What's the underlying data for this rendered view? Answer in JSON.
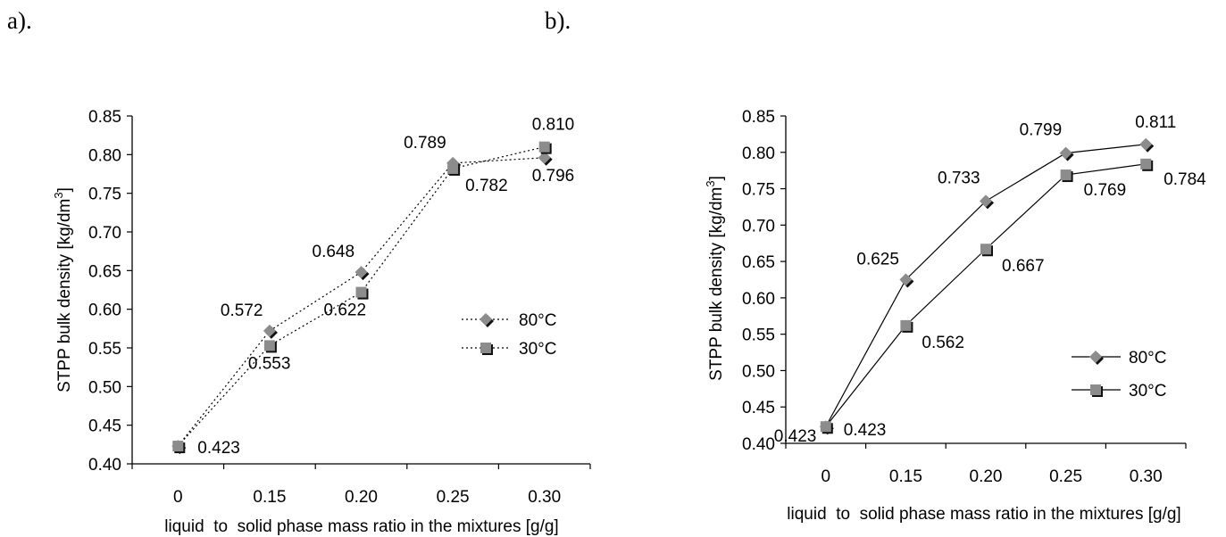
{
  "panels": {
    "a_label": "a).",
    "b_label": "b)."
  },
  "chart_data": [
    {
      "type": "line",
      "panel": "a).",
      "categories": [
        "0",
        "0.15",
        "0.20",
        "0.25",
        "0.30"
      ],
      "ylabel": "STPP bulk density [kg/dm³]",
      "xlabel": "liquid  to  solid phase mass ratio in the mixtures [g/g]",
      "ylim": [
        0.4,
        0.85
      ],
      "yticks": [
        "0.40",
        "0.45",
        "0.50",
        "0.55",
        "0.60",
        "0.65",
        "0.70",
        "0.75",
        "0.80",
        "0.85"
      ],
      "line_style": "dotted",
      "legend_position": "right",
      "series": [
        {
          "name": "80°C",
          "marker": "diamond",
          "color": "#8c8c8c",
          "values": [
            0.423,
            0.572,
            0.648,
            0.789,
            0.796
          ],
          "labels": [
            "",
            "0.572",
            "0.648",
            "0.789",
            "0.796"
          ]
        },
        {
          "name": "30°C",
          "marker": "square",
          "color": "#8c8c8c",
          "values": [
            0.423,
            0.553,
            0.622,
            0.782,
            0.81
          ],
          "labels": [
            "0.423",
            "0.553",
            "0.622",
            "0.782",
            "0.810"
          ]
        }
      ]
    },
    {
      "type": "line",
      "panel": "b).",
      "categories": [
        "0",
        "0.15",
        "0.20",
        "0.25",
        "0.30"
      ],
      "ylabel": "STPP bulk density [kg/dm³]",
      "xlabel": "liquid  to  solid phase mass ratio in the mixtures [g/g]",
      "ylim": [
        0.4,
        0.85
      ],
      "yticks": [
        "0.40",
        "0.45",
        "0.50",
        "0.55",
        "0.60",
        "0.65",
        "0.70",
        "0.75",
        "0.80",
        "0.85"
      ],
      "line_style": "solid",
      "legend_position": "right",
      "series": [
        {
          "name": "80°C",
          "marker": "diamond",
          "color": "#8c8c8c",
          "values": [
            0.423,
            0.625,
            0.733,
            0.799,
            0.811
          ],
          "labels": [
            "0.423",
            "0.625",
            "0.733",
            "0.799",
            "0.811"
          ]
        },
        {
          "name": "30°C",
          "marker": "square",
          "color": "#8c8c8c",
          "values": [
            0.423,
            0.562,
            0.667,
            0.769,
            0.784
          ],
          "labels": [
            "0.423",
            "0.562",
            "0.667",
            "0.769",
            "0.784"
          ]
        }
      ]
    }
  ]
}
